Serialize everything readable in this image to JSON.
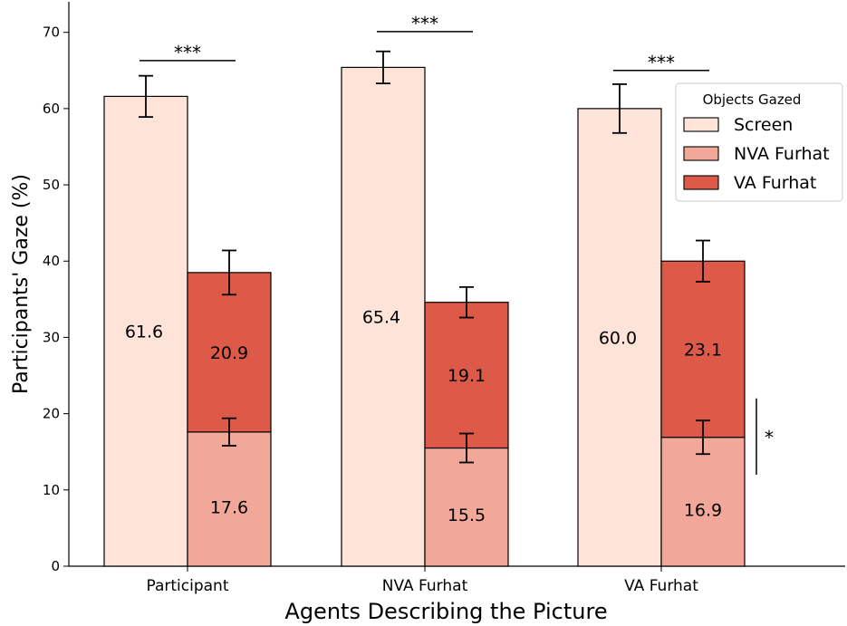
{
  "chart_data": {
    "type": "bar",
    "stacked_bar_groups": true,
    "xlabel": "Agents Describing the Picture",
    "ylabel": "Participants' Gaze (%)",
    "ylim": [
      0,
      74
    ],
    "yticks": [
      0,
      10,
      20,
      30,
      40,
      50,
      60,
      70
    ],
    "categories": [
      "Participant",
      "NVA Furhat",
      "VA Furhat"
    ],
    "series": [
      {
        "name": "Screen",
        "color": "#fee3d8",
        "values": [
          61.6,
          65.4,
          60.0
        ],
        "errors": [
          2.7,
          2.1,
          3.2
        ]
      },
      {
        "name": "NVA Furhat",
        "color": "#f2a898",
        "values": [
          17.6,
          15.5,
          16.9
        ],
        "errors": [
          1.8,
          1.9,
          2.2
        ]
      },
      {
        "name": "VA Furhat",
        "color": "#de5a48",
        "values": [
          20.9,
          19.1,
          23.1
        ],
        "errors": [
          2.9,
          2.0,
          2.7
        ]
      }
    ],
    "data_labels": [
      [
        "61.6",
        "65.4",
        "60.0"
      ],
      [
        "17.6",
        "15.5",
        "16.9"
      ],
      [
        "20.9",
        "19.1",
        "23.1"
      ]
    ],
    "significance": [
      {
        "text": "***",
        "category_index": 0,
        "y": 66.3
      },
      {
        "text": "***",
        "category_index": 1,
        "y": 70.1
      },
      {
        "text": "***",
        "category_index": 2,
        "y": 65.0
      },
      {
        "text": "*",
        "category_index": 2,
        "y_from": 22,
        "y_to": 12
      }
    ],
    "legend": {
      "title": "Objects Gazed",
      "position": "upper right",
      "entries": [
        "Screen",
        "NVA Furhat",
        "VA Furhat"
      ]
    },
    "grid": false
  }
}
